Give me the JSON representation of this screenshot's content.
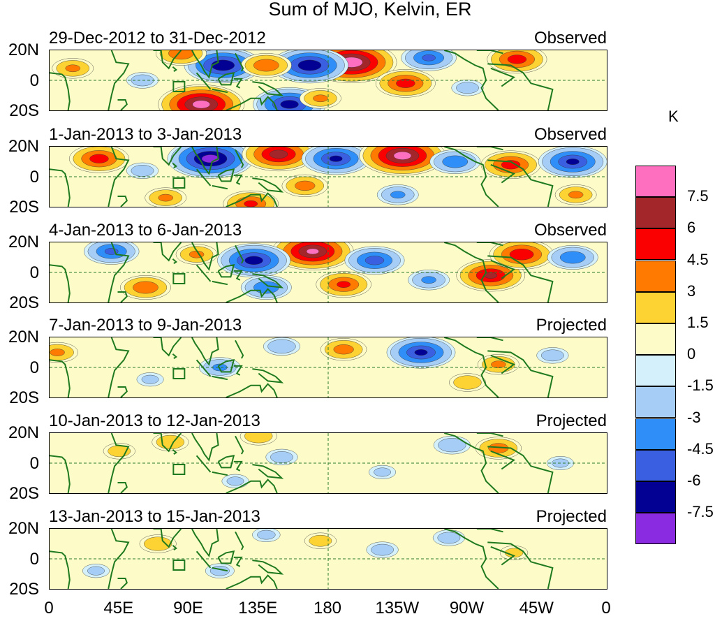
{
  "chart_data": {
    "type": "heatmap",
    "title": "Sum of MJO, Kelvin, ER",
    "units": "K",
    "latitude_ticks": [
      "20N",
      "0",
      "20S"
    ],
    "longitude_ticks": [
      "0",
      "45E",
      "90E",
      "135E",
      "180",
      "135W",
      "90W",
      "45W",
      "0"
    ],
    "colorbar": {
      "labels": [
        "7.5",
        "6",
        "4.5",
        "3",
        "1.5",
        "0",
        "-1.5",
        "-3",
        "-4.5",
        "-6",
        "-7.5"
      ],
      "colors": [
        "#ff6fbf",
        "#a3272a",
        "#fb0000",
        "#ff7a00",
        "#fdd233",
        "#fdfcc9",
        "#d3f0fb",
        "#a5cdf5",
        "#2f8ef7",
        "#3a5fe0",
        "#030094",
        "#8a2be2"
      ]
    },
    "panels": [
      {
        "date_range": "29-Dec-2012 to 31-Dec-2012",
        "kind": "Observed",
        "anomalies": [
          {
            "lon": 195,
            "lat": 12,
            "value": 8.5
          },
          {
            "lon": 168,
            "lat": 10,
            "value": -7
          },
          {
            "lon": 112,
            "lat": 10,
            "value": -7
          },
          {
            "lon": 140,
            "lat": 10,
            "value": 4
          },
          {
            "lon": 85,
            "lat": 18,
            "value": 4
          },
          {
            "lon": 98,
            "lat": -16,
            "value": 8
          },
          {
            "lon": 155,
            "lat": -16,
            "value": -6.5
          },
          {
            "lon": 230,
            "lat": -2,
            "value": 5
          },
          {
            "lon": 245,
            "lat": 15,
            "value": -4.5
          },
          {
            "lon": 302,
            "lat": 14,
            "value": 5
          },
          {
            "lon": 15,
            "lat": 8,
            "value": 3
          },
          {
            "lon": 60,
            "lat": 0,
            "value": -2
          },
          {
            "lon": 175,
            "lat": -12,
            "value": 3
          },
          {
            "lon": 270,
            "lat": -5,
            "value": -2
          }
        ]
      },
      {
        "date_range": "1-Jan-2013 to 3-Jan-2013",
        "kind": "Observed",
        "anomalies": [
          {
            "lon": 104,
            "lat": 12,
            "value": -8
          },
          {
            "lon": 148,
            "lat": 15,
            "value": 6.5
          },
          {
            "lon": 185,
            "lat": 12,
            "value": -6
          },
          {
            "lon": 228,
            "lat": 14,
            "value": 8
          },
          {
            "lon": 262,
            "lat": 10,
            "value": -4
          },
          {
            "lon": 298,
            "lat": 8,
            "value": 5
          },
          {
            "lon": 338,
            "lat": 10,
            "value": -6
          },
          {
            "lon": 32,
            "lat": 12,
            "value": 5
          },
          {
            "lon": 130,
            "lat": -18,
            "value": 4.5
          },
          {
            "lon": 165,
            "lat": -6,
            "value": 3.5
          },
          {
            "lon": 75,
            "lat": -14,
            "value": 3
          },
          {
            "lon": 225,
            "lat": -12,
            "value": -3
          },
          {
            "lon": 60,
            "lat": 4,
            "value": -2
          },
          {
            "lon": 340,
            "lat": -12,
            "value": 3
          }
        ]
      },
      {
        "date_range": "4-Jan-2013 to 6-Jan-2013",
        "kind": "Observed",
        "anomalies": [
          {
            "lon": 170,
            "lat": 14,
            "value": 7.5
          },
          {
            "lon": 132,
            "lat": 8,
            "value": -6.5
          },
          {
            "lon": 210,
            "lat": 8,
            "value": -5
          },
          {
            "lon": 285,
            "lat": -2,
            "value": 6
          },
          {
            "lon": 305,
            "lat": 12,
            "value": 5.5
          },
          {
            "lon": 40,
            "lat": 14,
            "value": -4.5
          },
          {
            "lon": 62,
            "lat": -10,
            "value": 4
          },
          {
            "lon": 190,
            "lat": -8,
            "value": 4.5
          },
          {
            "lon": 245,
            "lat": -5,
            "value": -3
          },
          {
            "lon": 338,
            "lat": 10,
            "value": -4
          },
          {
            "lon": 140,
            "lat": -10,
            "value": -4
          },
          {
            "lon": 95,
            "lat": 12,
            "value": 3
          }
        ]
      },
      {
        "date_range": "7-Jan-2013 to 9-Jan-2013",
        "kind": "Projected",
        "anomalies": [
          {
            "lon": 240,
            "lat": 10,
            "value": -6
          },
          {
            "lon": 190,
            "lat": 12,
            "value": 3.5
          },
          {
            "lon": 290,
            "lat": 2,
            "value": 3
          },
          {
            "lon": 270,
            "lat": -10,
            "value": 2.5
          },
          {
            "lon": 150,
            "lat": 14,
            "value": -2.5
          },
          {
            "lon": 110,
            "lat": 0,
            "value": -3
          },
          {
            "lon": 5,
            "lat": 10,
            "value": 3
          },
          {
            "lon": 325,
            "lat": 8,
            "value": -2
          },
          {
            "lon": 65,
            "lat": -8,
            "value": -1.5
          }
        ]
      },
      {
        "date_range": "10-Jan-2013 to 12-Jan-2013",
        "kind": "Projected",
        "anomalies": [
          {
            "lon": 78,
            "lat": 14,
            "value": 2.5
          },
          {
            "lon": 135,
            "lat": 18,
            "value": 2.5
          },
          {
            "lon": 290,
            "lat": 10,
            "value": 3.5
          },
          {
            "lon": 260,
            "lat": 12,
            "value": -2.5
          },
          {
            "lon": 150,
            "lat": 4,
            "value": -2
          },
          {
            "lon": 215,
            "lat": -6,
            "value": -1.5
          },
          {
            "lon": 45,
            "lat": 8,
            "value": 2
          },
          {
            "lon": 120,
            "lat": -12,
            "value": -1.5
          },
          {
            "lon": 330,
            "lat": 0,
            "value": -1.5
          }
        ]
      },
      {
        "date_range": "13-Jan-2013 to 15-Jan-2013",
        "kind": "Projected",
        "anomalies": [
          {
            "lon": 70,
            "lat": 10,
            "value": 2.5
          },
          {
            "lon": 175,
            "lat": 12,
            "value": 2
          },
          {
            "lon": 215,
            "lat": 6,
            "value": -2
          },
          {
            "lon": 258,
            "lat": 14,
            "value": -2
          },
          {
            "lon": 300,
            "lat": 4,
            "value": 1.6
          },
          {
            "lon": 110,
            "lat": -8,
            "value": -1.7
          },
          {
            "lon": 30,
            "lat": -8,
            "value": -1.5
          },
          {
            "lon": 140,
            "lat": 16,
            "value": -1.6
          }
        ]
      }
    ]
  }
}
